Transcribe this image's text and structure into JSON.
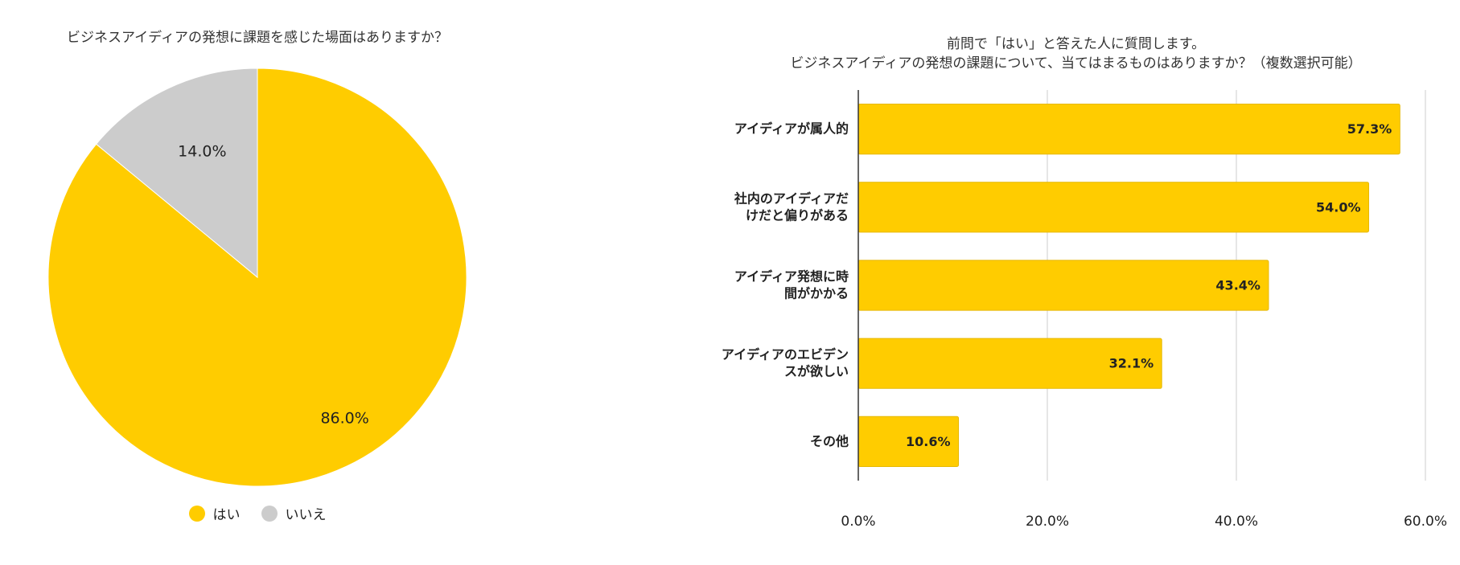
{
  "chart_data": [
    {
      "type": "pie",
      "title": "ビジネスアイディアの発想に課題を感じた場面はありますか？",
      "slices": [
        {
          "label": "はい",
          "value": 86.0,
          "value_label": "86.0%",
          "color": "#FFCC00"
        },
        {
          "label": "いいえ",
          "value": 14.0,
          "value_label": "14.0%",
          "color": "#CCCCCC"
        }
      ],
      "legend": "bottom"
    },
    {
      "type": "bar",
      "orientation": "horizontal",
      "title_lines": [
        "前問で「はい」と答えた人に質問します。",
        "ビジネスアイディアの発想の課題について、当てはまるものはありますか？（複数選択可能）"
      ],
      "categories": [
        [
          "アイディアが属人的"
        ],
        [
          "社内のアイディアだ",
          "けだと偏りがある"
        ],
        [
          "アイディア発想に時",
          "間がかかる"
        ],
        [
          "アイディアのエビデン",
          "スが欲しい"
        ],
        [
          "その他"
        ]
      ],
      "values": [
        57.3,
        54.0,
        43.4,
        32.1,
        10.6
      ],
      "value_labels": [
        "57.3%",
        "54.0%",
        "43.4%",
        "32.1%",
        "10.6%"
      ],
      "xlim": [
        0,
        60
      ],
      "xticks": [
        "0.0%",
        "20.0%",
        "40.0%",
        "60.0%"
      ],
      "bar_color": "#FFCC00",
      "grid": true
    }
  ]
}
